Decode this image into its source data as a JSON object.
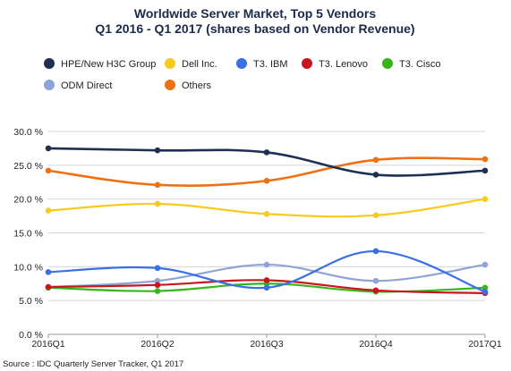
{
  "chart_data": {
    "type": "line",
    "title": "Worldwide Server Market, Top 5 Vendors",
    "subtitle": "Q1 2016 - Q1 2017 (shares based on Vendor Revenue)",
    "x": [
      "2016Q1",
      "2016Q2",
      "2016Q3",
      "2016Q4",
      "2017Q1"
    ],
    "y_ticks": [
      "0.0 %",
      "5.0 %",
      "10.0 %",
      "15.0 %",
      "20.0 %",
      "25.0 %",
      "30.0 %"
    ],
    "ylim": [
      0,
      30
    ],
    "grid": true,
    "legend_position": "top",
    "series": [
      {
        "name": "HPE/New H3C Group",
        "color": "#1f2f52",
        "values": [
          27.5,
          27.2,
          26.9,
          23.6,
          24.2
        ]
      },
      {
        "name": "Dell Inc.",
        "color": "#f6cb1e",
        "values": [
          18.3,
          19.3,
          17.8,
          17.6,
          20.0
        ]
      },
      {
        "name": "T3. IBM",
        "color": "#3b6fe6",
        "values": [
          9.2,
          9.8,
          6.9,
          12.3,
          6.3
        ]
      },
      {
        "name": "T3. Lenovo",
        "color": "#c8161d",
        "values": [
          7.0,
          7.3,
          8.0,
          6.5,
          6.1
        ]
      },
      {
        "name": "T3. Cisco",
        "color": "#37b51b",
        "values": [
          6.9,
          6.4,
          7.5,
          6.3,
          6.9
        ]
      },
      {
        "name": "ODM Direct",
        "color": "#8fa4d6",
        "values": [
          7.0,
          7.9,
          10.3,
          7.9,
          10.3
        ]
      },
      {
        "name": "Others",
        "color": "#f07014",
        "values": [
          24.2,
          22.1,
          22.7,
          25.8,
          25.9
        ]
      }
    ],
    "source": "Source : IDC Quarterly Server Tracker, Q1 2017"
  }
}
